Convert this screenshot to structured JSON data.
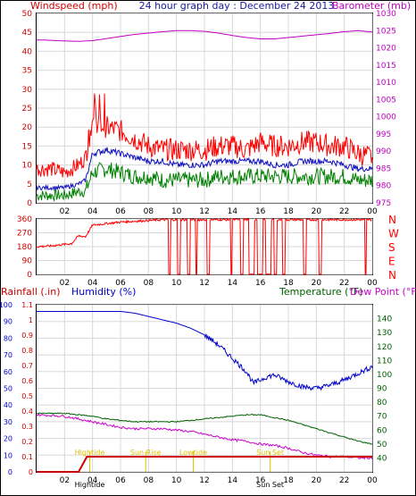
{
  "colors": {
    "wind_axis": "#d40000",
    "baro_axis": "#c000c0",
    "wind_avg": "#1010c0",
    "gust": "#ff0000",
    "wind_green": "#008000",
    "dir": "#ff0000",
    "rain": "#cc0000",
    "humidity": "#0000cc",
    "temperature": "#006000",
    "dewpoint": "#cc00cc",
    "event": "#e0c000",
    "grid": "#d8d8d8"
  },
  "header": {
    "wind_label": "Windspeed (mph)",
    "title": "24 hour graph day : December 24 2013",
    "baro_label": "Barometer (mb)"
  },
  "middle": {
    "dir_letters": [
      "N",
      "W",
      "S",
      "E",
      "N"
    ]
  },
  "bottom": {
    "rain_label": "Rainfall (.in)",
    "hum_label": "Humidity (%)",
    "temp_label": "Temperature (°F)",
    "dew_label": "Dew Point (°F)",
    "events": [
      {
        "label": "Hightide",
        "hour": 3.8
      },
      {
        "label": "Sun Rise",
        "hour": 7.8
      },
      {
        "label": "Lowtide",
        "hour": 11.2
      },
      {
        "label": "Sun Set",
        "hour": 16.7
      }
    ],
    "axis_events": [
      {
        "label": "Hightide",
        "hour": 3.8
      },
      {
        "label": "Sun Set",
        "hour": 16.7
      }
    ]
  },
  "chart_data": [
    {
      "type": "line",
      "panel": "wind-barometer",
      "x_ticks": [
        "02",
        "04",
        "06",
        "08",
        "10",
        "12",
        "14",
        "16",
        "18",
        "20",
        "22",
        "00"
      ],
      "y_left": {
        "label": "Windspeed (mph)",
        "range": [
          0,
          50
        ],
        "ticks": [
          "0",
          "5",
          "10",
          "15",
          "20",
          "25",
          "30",
          "35",
          "40",
          "45",
          "50"
        ]
      },
      "y_right": {
        "label": "Barometer (mb)",
        "range": [
          975,
          1030
        ],
        "ticks": [
          "975",
          "980",
          "985",
          "990",
          "995",
          "1000",
          "1005",
          "1010",
          "1015",
          "1020",
          "1025",
          "1030"
        ]
      },
      "series": [
        {
          "axis": "left",
          "hours": [
            0,
            1,
            2,
            3,
            3.5,
            4,
            5,
            6,
            7,
            8,
            9,
            10,
            11,
            12,
            13,
            14,
            15,
            16,
            17,
            18,
            19,
            20,
            21,
            22,
            23,
            24
          ],
          "values": [
            9,
            9,
            8,
            10,
            12,
            22,
            20,
            19,
            17,
            15,
            14,
            14,
            14,
            14,
            15,
            15,
            14,
            16,
            15,
            15,
            16,
            16,
            15,
            15,
            13,
            12
          ],
          "jitter": 3
        },
        {
          "axis": "left",
          "hours": [
            0,
            1,
            2,
            3,
            3.5,
            4,
            5,
            6,
            7,
            8,
            9,
            10,
            11,
            12,
            13,
            14,
            15,
            16,
            17,
            18,
            19,
            20,
            21,
            22,
            23,
            24
          ],
          "values": [
            4,
            4,
            4,
            5,
            6,
            13,
            14,
            13,
            12,
            11,
            11,
            10,
            10,
            10,
            11,
            11,
            11,
            11,
            10,
            10,
            11,
            11,
            11,
            10,
            9,
            9
          ],
          "jitter": 0.8
        },
        {
          "axis": "left",
          "hours": [
            0,
            1,
            2,
            3,
            3.5,
            4,
            5,
            6,
            7,
            8,
            9,
            10,
            11,
            12,
            13,
            14,
            15,
            16,
            17,
            18,
            19,
            20,
            21,
            22,
            23,
            24
          ],
          "values": [
            2,
            2,
            2,
            3,
            3,
            8,
            9,
            8,
            7,
            7,
            6,
            6,
            6,
            6,
            7,
            7,
            7,
            7,
            7,
            7,
            7,
            7,
            7,
            7,
            6,
            6
          ],
          "jitter": 2.2
        },
        {
          "axis": "right",
          "hours": [
            0,
            1,
            2,
            3,
            4,
            5,
            6,
            7,
            8,
            9,
            10,
            11,
            12,
            13,
            14,
            15,
            16,
            17,
            18,
            19,
            20,
            21,
            22,
            23,
            24
          ],
          "values": [
            1022.3,
            1022.2,
            1022,
            1021.9,
            1022.1,
            1022.7,
            1023.3,
            1023.9,
            1024.3,
            1024.7,
            1025,
            1025,
            1024.8,
            1024.3,
            1023.6,
            1023,
            1022.6,
            1022.6,
            1023,
            1023.4,
            1023.8,
            1024.2,
            1024.7,
            1025,
            1024.6
          ]
        }
      ]
    },
    {
      "type": "line",
      "panel": "wind-direction",
      "x_ticks": [
        "02",
        "04",
        "06",
        "08",
        "10",
        "12",
        "14",
        "16",
        "18",
        "20",
        "22",
        "00"
      ],
      "y_left": {
        "range": [
          0,
          360
        ],
        "ticks": [
          "0",
          "90",
          "180",
          "270",
          "360"
        ]
      },
      "y_right": {
        "ticks": [
          "N",
          "W",
          "S",
          "E",
          "N"
        ]
      },
      "series": [
        {
          "hours": [
            0,
            1,
            2,
            2.5,
            3,
            3.5,
            4,
            5,
            6,
            7,
            8,
            9,
            24
          ],
          "values": [
            180,
            185,
            195,
            200,
            250,
            245,
            320,
            330,
            340,
            345,
            350,
            355,
            355
          ]
        }
      ],
      "drops_to_zero": [
        [
          9.4,
          9.6
        ],
        [
          10.1,
          10.3
        ],
        [
          10.8,
          11.0
        ],
        [
          11.4,
          11.5
        ],
        [
          12.2,
          12.4
        ],
        [
          13.9,
          14.0
        ],
        [
          14.6,
          14.8
        ],
        [
          15.2,
          15.6
        ],
        [
          15.8,
          16.2
        ],
        [
          16.4,
          16.8
        ],
        [
          17.0,
          17.2
        ],
        [
          17.6,
          17.8
        ],
        [
          19.1,
          19.3
        ],
        [
          20.2,
          20.4
        ],
        [
          23.5,
          23.6
        ]
      ]
    },
    {
      "type": "line",
      "panel": "rain-humidity-temperature",
      "x_ticks": [
        "02",
        "04",
        "06",
        "08",
        "10",
        "12",
        "14",
        "16",
        "18",
        "20",
        "22",
        "00"
      ],
      "y_left_rain": {
        "label": "Rainfall (.in)",
        "range": [
          0,
          1.1
        ],
        "ticks": [
          "0",
          "0.1",
          "0.2",
          "0.3",
          "0.4",
          "0.5",
          "0.6",
          "0.7",
          "0.8",
          "0.9",
          "1",
          "1.1"
        ]
      },
      "y_left_humidity": {
        "label": "Humidity (%)",
        "range": [
          0,
          100
        ],
        "ticks": [
          "0",
          "10",
          "20",
          "30",
          "40",
          "50",
          "60",
          "70",
          "80",
          "90",
          "100"
        ]
      },
      "y_right": {
        "label": "Temperature (°F)",
        "range": [
          30,
          150
        ],
        "ticks": [
          "40",
          "50",
          "60",
          "70",
          "80",
          "90",
          "100",
          "110",
          "120",
          "130",
          "140"
        ]
      },
      "series": [
        {
          "axis": "humidity",
          "hours": [
            0,
            2,
            4,
            5,
            6,
            7,
            8,
            9,
            10,
            11,
            12,
            13,
            14,
            15,
            15.5,
            16,
            16.5,
            17,
            18,
            19,
            20,
            21,
            22,
            23,
            24
          ],
          "values": [
            96,
            96,
            96,
            96,
            96,
            95,
            93,
            91,
            89,
            86,
            82,
            76,
            68,
            60,
            53,
            55,
            57,
            58,
            54,
            51,
            50,
            52,
            55,
            59,
            63
          ]
        },
        {
          "axis": "rain",
          "hours": [
            0,
            3,
            3.6,
            24
          ],
          "values": [
            0,
            0,
            0.1,
            0.1
          ]
        },
        {
          "axis": "right",
          "hours": [
            0,
            2,
            3,
            4,
            5,
            6,
            7,
            8,
            9,
            10,
            11,
            12,
            13,
            14,
            15,
            16,
            17,
            18,
            19,
            20,
            21,
            22,
            23,
            24
          ],
          "values": [
            72,
            72,
            71,
            70,
            68,
            67,
            66,
            66,
            66,
            66,
            67,
            68,
            69,
            70,
            71,
            71,
            69,
            67,
            64,
            61,
            58,
            55,
            52,
            50
          ]
        },
        {
          "axis": "right",
          "hours": [
            0,
            2,
            3,
            4,
            5,
            6,
            7,
            8,
            9,
            10,
            11,
            12,
            13,
            14,
            15,
            16,
            17,
            18,
            19,
            20,
            21,
            22,
            23,
            24
          ],
          "values": [
            71,
            70,
            68,
            66,
            64,
            62,
            61,
            61,
            61,
            60,
            59,
            57,
            55,
            53,
            52,
            50,
            49,
            47,
            44,
            42,
            41,
            41,
            40,
            40
          ]
        }
      ]
    }
  ]
}
